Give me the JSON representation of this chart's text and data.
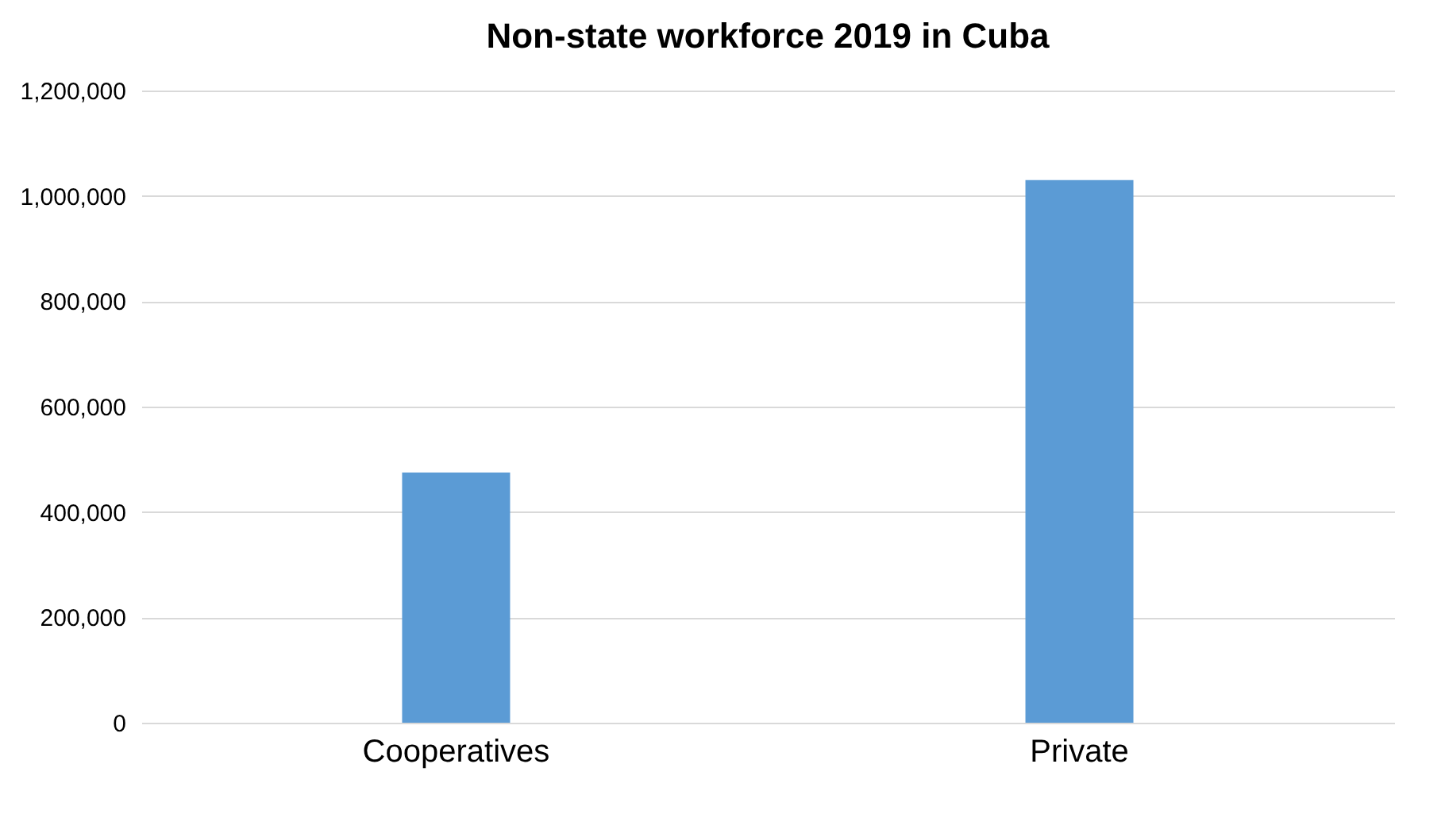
{
  "chart_data": {
    "type": "bar",
    "title": "Non-state workforce 2019 in Cuba",
    "categories": [
      "Cooperatives",
      "Private"
    ],
    "values": [
      475000,
      1030000
    ],
    "color": "#5b9bd5",
    "ylim": [
      0,
      1200000
    ],
    "yticks": [
      0,
      {
        "value": 200000,
        "label": "200,000"
      },
      {
        "value": 400000,
        "label": "400,000"
      },
      {
        "value": 600000,
        "label": "600,000"
      },
      {
        "value": 800000,
        "label": "800,000"
      },
      {
        "value": 1000000,
        "label": "1,000,000"
      },
      {
        "value": 1200000,
        "label": "1,200,000"
      }
    ],
    "grid": "y"
  }
}
